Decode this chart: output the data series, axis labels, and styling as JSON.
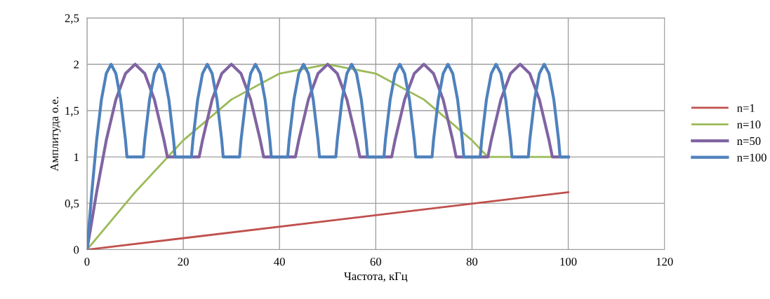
{
  "chart_data": {
    "type": "line",
    "xlabel": "Частота, кГц",
    "ylabel": "Амплитуда о.е.",
    "xlim": [
      0,
      120
    ],
    "xticks": [
      0,
      20,
      40,
      60,
      80,
      100,
      120
    ],
    "ylim": [
      0,
      2.5
    ],
    "yticks": [
      0,
      {
        "value": 0.5,
        "label": "0,5"
      },
      1,
      {
        "value": 1.5,
        "label": "1,5"
      },
      2,
      {
        "value": 2.5,
        "label": "2,5"
      }
    ],
    "grid": true,
    "legend": "right",
    "marker": "none",
    "line_style": "solid",
    "series": [
      {
        "name": "n=1",
        "color": "#c0504d",
        "x": [
          0,
          100
        ],
        "values": [
          0,
          0.62
        ]
      },
      {
        "name": "n=10",
        "color": "#9bbb59",
        "x": [
          0,
          10,
          20,
          30,
          40,
          50,
          60,
          70,
          80,
          83.3,
          100
        ],
        "values": [
          0,
          0.62,
          1.18,
          1.62,
          1.9,
          2,
          1.9,
          1.62,
          1.18,
          1,
          1
        ]
      },
      {
        "name": "n=50",
        "color": "#8064a2",
        "x": [
          0,
          2,
          4,
          6,
          8,
          10,
          12,
          14,
          16,
          16.7,
          23.3,
          24,
          26,
          28,
          30,
          32,
          34,
          36,
          36.7,
          43.3,
          44,
          46,
          48,
          50,
          52,
          54,
          56,
          56.7,
          63.3,
          64,
          66,
          68,
          70,
          72,
          74,
          76,
          76.7,
          83.3,
          84,
          86,
          88,
          90,
          92,
          94,
          96,
          96.7,
          100
        ],
        "values": [
          0,
          0.62,
          1.18,
          1.62,
          1.9,
          2,
          1.9,
          1.62,
          1.18,
          1,
          1,
          1.18,
          1.62,
          1.9,
          2,
          1.9,
          1.62,
          1.18,
          1,
          1,
          1.18,
          1.62,
          1.9,
          2,
          1.9,
          1.62,
          1.18,
          1,
          1,
          1.18,
          1.62,
          1.9,
          2,
          1.9,
          1.62,
          1.18,
          1,
          1,
          1.18,
          1.62,
          1.9,
          2,
          1.9,
          1.62,
          1.18,
          1,
          1
        ]
      },
      {
        "name": "n=100",
        "color": "#4f81bd",
        "x": [
          0,
          1,
          2,
          3,
          4,
          5,
          6,
          7,
          8,
          8.3,
          11.7,
          12,
          13,
          14,
          15,
          16,
          17,
          18,
          18.3,
          21.7,
          22,
          23,
          24,
          25,
          26,
          27,
          28,
          28.3,
          31.7,
          32,
          33,
          34,
          35,
          36,
          37,
          38,
          38.3,
          41.7,
          42,
          43,
          44,
          45,
          46,
          47,
          48,
          48.3,
          51.7,
          52,
          53,
          54,
          55,
          56,
          57,
          58,
          58.3,
          61.7,
          62,
          63,
          64,
          65,
          66,
          67,
          68,
          68.3,
          71.7,
          72,
          73,
          74,
          75,
          76,
          77,
          78,
          78.3,
          81.7,
          82,
          83,
          84,
          85,
          86,
          87,
          88,
          88.3,
          91.7,
          92,
          93,
          94,
          95,
          96,
          97,
          98,
          98.3,
          100
        ],
        "values": [
          0,
          0.62,
          1.18,
          1.62,
          1.9,
          2,
          1.9,
          1.62,
          1.18,
          1,
          1,
          1.18,
          1.62,
          1.9,
          2,
          1.9,
          1.62,
          1.18,
          1,
          1,
          1.18,
          1.62,
          1.9,
          2,
          1.9,
          1.62,
          1.18,
          1,
          1,
          1.18,
          1.62,
          1.9,
          2,
          1.9,
          1.62,
          1.18,
          1,
          1,
          1.18,
          1.62,
          1.9,
          2,
          1.9,
          1.62,
          1.18,
          1,
          1,
          1.18,
          1.62,
          1.9,
          2,
          1.9,
          1.62,
          1.18,
          1,
          1,
          1.18,
          1.62,
          1.9,
          2,
          1.9,
          1.62,
          1.18,
          1,
          1,
          1.18,
          1.62,
          1.9,
          2,
          1.9,
          1.62,
          1.18,
          1,
          1,
          1.18,
          1.62,
          1.9,
          2,
          1.9,
          1.62,
          1.18,
          1,
          1,
          1.18,
          1.62,
          1.9,
          2,
          1.9,
          1.62,
          1.18,
          1,
          1
        ]
      }
    ]
  }
}
